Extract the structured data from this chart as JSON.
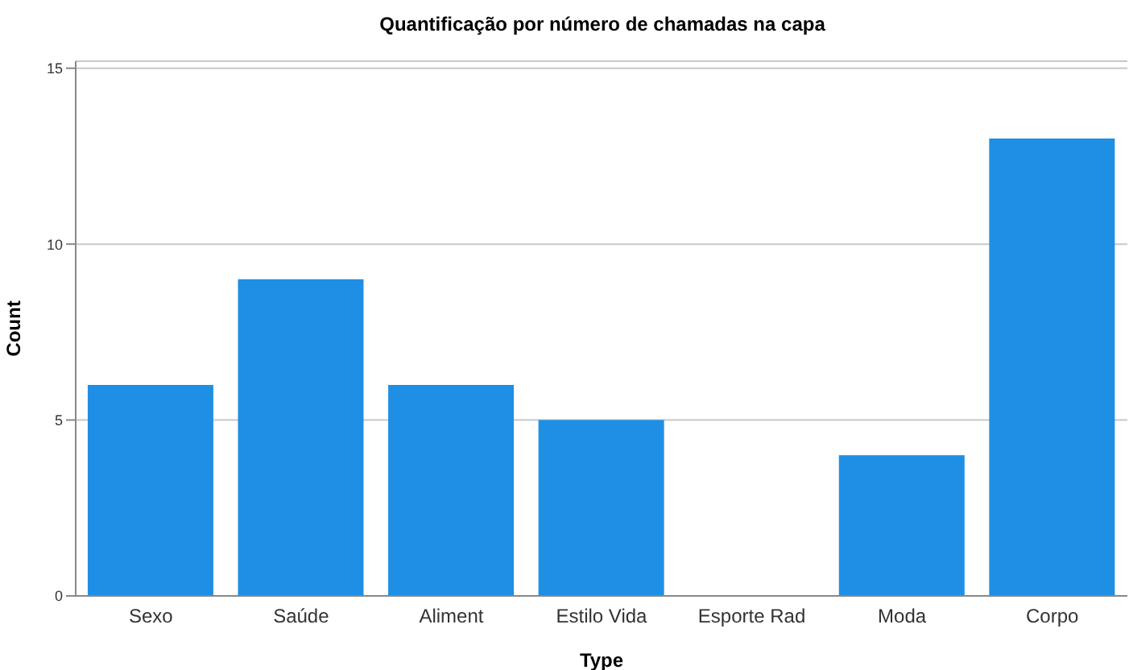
{
  "chart_data": {
    "type": "bar",
    "title": "Quantificação por número de chamadas na capa",
    "xlabel": "Type",
    "ylabel": "Count",
    "categories": [
      "Sexo",
      "Saúde",
      "Aliment",
      "Estilo Vida",
      "Esporte Rad",
      "Moda",
      "Corpo"
    ],
    "values": [
      6,
      9,
      6,
      5,
      0,
      4,
      13
    ],
    "color": "#1f8fe5",
    "ylim": [
      0,
      15.2
    ],
    "yticks": [
      0,
      5,
      10,
      15
    ],
    "grid": "y"
  }
}
